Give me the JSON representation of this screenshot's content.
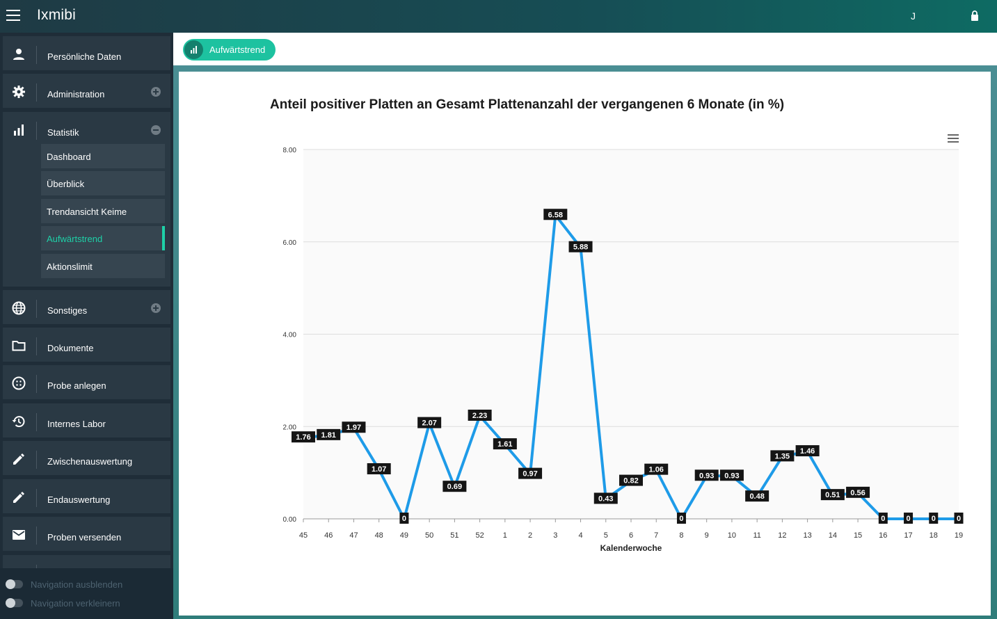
{
  "header": {
    "title": "Ixmibi",
    "user": "J"
  },
  "sidebar": {
    "items": [
      {
        "label": "Persönliche Daten",
        "icon": "person-icon"
      },
      {
        "label": "Administration",
        "icon": "gear-icon"
      },
      {
        "label": "Statistik",
        "icon": "bar-chart-icon"
      },
      {
        "label": "Sonstiges",
        "icon": "globe-icon"
      },
      {
        "label": "Dokumente",
        "icon": "folder-icon"
      },
      {
        "label": "Probe anlegen",
        "icon": "dots-circle-icon"
      },
      {
        "label": "Internes Labor",
        "icon": "history-icon"
      },
      {
        "label": "Zwischenauswertung",
        "icon": "pencil-icon"
      },
      {
        "label": "Endauswertung",
        "icon": "pencil-icon"
      },
      {
        "label": "Proben versenden",
        "icon": "mail-icon"
      }
    ],
    "statistik_sub": [
      {
        "label": "Dashboard"
      },
      {
        "label": "Überblick"
      },
      {
        "label": "Trendansicht Keime"
      },
      {
        "label": "Aufwärtstrend",
        "active": true
      },
      {
        "label": "Aktionslimit"
      }
    ],
    "toggles": {
      "hide": "Navigation ausblenden",
      "shrink": "Navigation verkleinern"
    }
  },
  "tab": {
    "label": "Aufwärtstrend"
  },
  "colors": {
    "accent": "#1dc2a0",
    "line": "#1e9be8",
    "header": "#164e55"
  },
  "chart_data": {
    "type": "line",
    "title": "Anteil positiver Platten an Gesamt Plattenanzahl der vergangenen 6 Monate (in %)",
    "xlabel": "Kalenderwoche",
    "ylabel": "",
    "ylim": [
      0,
      8
    ],
    "yticks": [
      "0.00",
      "2.00",
      "4.00",
      "6.00",
      "8.00"
    ],
    "categories": [
      "45",
      "46",
      "47",
      "48",
      "49",
      "50",
      "51",
      "52",
      "1",
      "2",
      "3",
      "4",
      "5",
      "6",
      "7",
      "8",
      "9",
      "10",
      "11",
      "12",
      "13",
      "14",
      "15",
      "16",
      "17",
      "18",
      "19"
    ],
    "values": [
      1.76,
      1.81,
      1.97,
      1.07,
      0,
      2.07,
      0.69,
      2.23,
      1.61,
      0.97,
      6.58,
      5.88,
      0.43,
      0.82,
      1.06,
      0,
      0.93,
      0.93,
      0.48,
      1.35,
      1.46,
      0.51,
      0.56,
      0,
      0,
      0,
      0
    ],
    "labels": [
      "1.76",
      "1.81",
      "1.97",
      "1.07",
      "0",
      "2.07",
      "0.69",
      "2.23",
      "1.61",
      "0.97",
      "6.58",
      "5.88",
      "0.43",
      "0.82",
      "1.06",
      "0",
      "0.93",
      "0.93",
      "0.48",
      "1.35",
      "1.46",
      "0.51",
      "0.56",
      "0",
      "0",
      "0",
      "0"
    ],
    "grid": true
  }
}
